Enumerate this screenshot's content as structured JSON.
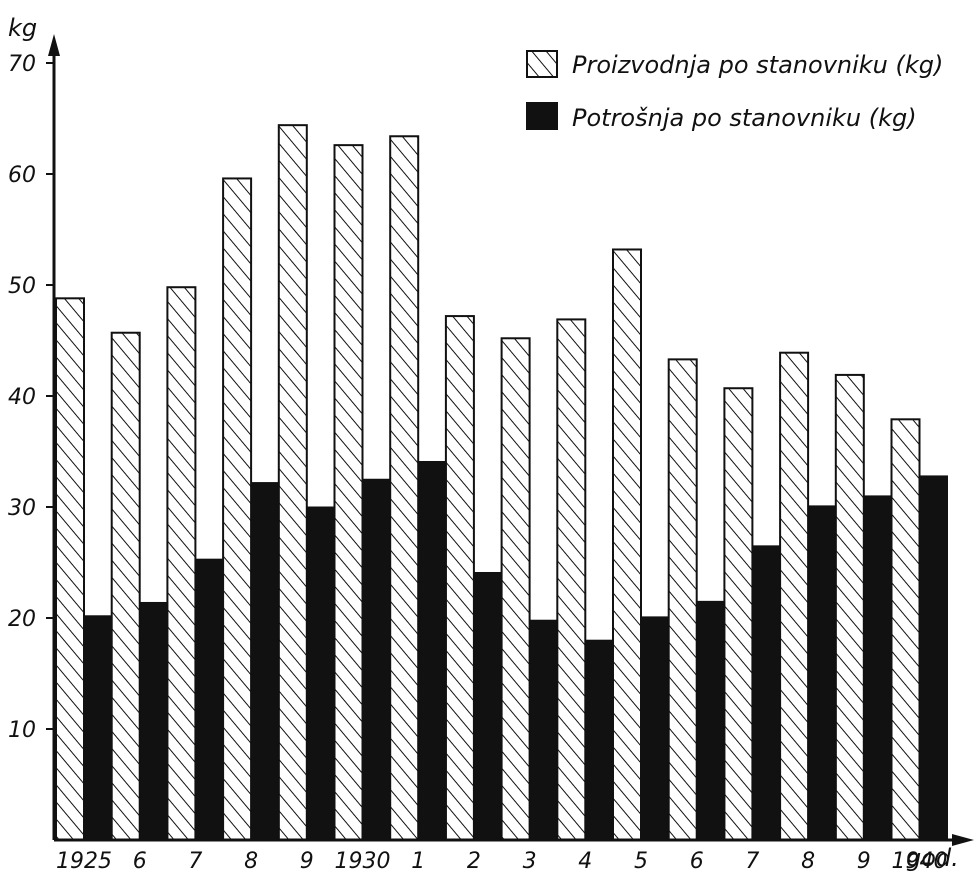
{
  "chart_data": {
    "type": "bar",
    "ylabel": "kg",
    "xlabel": "god.",
    "ylim": [
      0,
      70
    ],
    "yticks": [
      "10",
      "20",
      "30",
      "40",
      "50",
      "60",
      "70"
    ],
    "categories": [
      "1925",
      "6",
      "7",
      "8",
      "9",
      "1930",
      "1",
      "2",
      "3",
      "4",
      "5",
      "6",
      "7",
      "8",
      "9",
      "1940"
    ],
    "series": [
      {
        "name": "Proizvodnja po stanovniku (kg)",
        "pattern": "hatched",
        "values": [
          48.8,
          45.7,
          49.8,
          59.6,
          64.4,
          62.6,
          63.4,
          47.2,
          45.2,
          46.9,
          53.2,
          43.3,
          40.7,
          43.9,
          41.9,
          37.9
        ]
      },
      {
        "name": "Potrošnja po stanovniku (kg)",
        "pattern": "solid",
        "values": [
          20.2,
          21.4,
          25.3,
          32.2,
          30.0,
          32.5,
          34.1,
          24.1,
          19.8,
          18.0,
          20.1,
          21.5,
          26.5,
          30.1,
          31.0,
          32.8
        ]
      }
    ],
    "legend_position": "top-right",
    "colors": {
      "ink": "#111111",
      "paper": "#ffffff"
    }
  }
}
